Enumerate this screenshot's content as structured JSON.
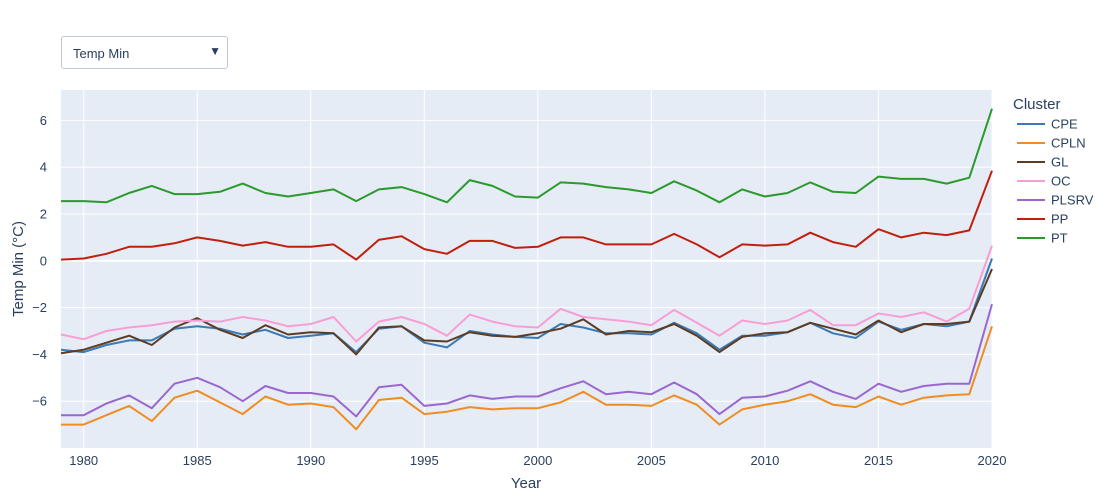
{
  "dropdown": {
    "selected": "Temp Min",
    "arrow": "▼"
  },
  "chart_data": {
    "type": "line",
    "xlabel": "Year",
    "ylabel": "Temp Min (°C)",
    "legend_title": "Cluster",
    "legend_position": "right",
    "grid": true,
    "xlim": [
      1979,
      2020
    ],
    "ylim": [
      -8.0,
      7.3
    ],
    "x_ticks": [
      1980,
      1985,
      1990,
      1995,
      2000,
      2005,
      2010,
      2015,
      2020
    ],
    "y_ticks": [
      6,
      4,
      2,
      0,
      -2,
      -4,
      -6
    ],
    "y_tick_labels": [
      "6",
      "4",
      "2",
      "0",
      "−2",
      "−4",
      "−6"
    ],
    "x": [
      1979,
      1980,
      1981,
      1982,
      1983,
      1984,
      1985,
      1986,
      1987,
      1988,
      1989,
      1990,
      1991,
      1992,
      1993,
      1994,
      1995,
      1996,
      1997,
      1998,
      1999,
      2000,
      2001,
      2002,
      2003,
      2004,
      2005,
      2006,
      2007,
      2008,
      2009,
      2010,
      2011,
      2012,
      2013,
      2014,
      2015,
      2016,
      2017,
      2018,
      2019,
      2020
    ],
    "series": [
      {
        "name": "CPE",
        "color": "#3c7ab5",
        "values": [
          -3.8,
          -3.9,
          -3.6,
          -3.4,
          -3.4,
          -2.9,
          -2.8,
          -2.9,
          -3.15,
          -2.95,
          -3.3,
          -3.2,
          -3.1,
          -3.9,
          -2.9,
          -2.8,
          -3.5,
          -3.7,
          -3.0,
          -3.15,
          -3.25,
          -3.3,
          -2.7,
          -2.85,
          -3.1,
          -3.1,
          -3.15,
          -2.65,
          -3.1,
          -3.8,
          -3.2,
          -3.2,
          -3.05,
          -2.65,
          -3.1,
          -3.3,
          -2.6,
          -2.95,
          -2.7,
          -2.8,
          -2.6,
          0.1
        ]
      },
      {
        "name": "CPLN",
        "color": "#ef8c22",
        "values": [
          -7.0,
          -7.0,
          -6.6,
          -6.2,
          -6.85,
          -5.85,
          -5.55,
          -6.05,
          -6.55,
          -5.8,
          -6.15,
          -6.1,
          -6.25,
          -7.2,
          -5.95,
          -5.85,
          -6.55,
          -6.45,
          -6.25,
          -6.35,
          -6.3,
          -6.3,
          -6.05,
          -5.6,
          -6.15,
          -6.15,
          -6.2,
          -5.75,
          -6.15,
          -7.0,
          -6.35,
          -6.15,
          -6.0,
          -5.7,
          -6.15,
          -6.25,
          -5.8,
          -6.15,
          -5.85,
          -5.75,
          -5.7,
          -2.8
        ]
      },
      {
        "name": "GL",
        "color": "#5c3c22",
        "values": [
          -3.95,
          -3.8,
          -3.5,
          -3.2,
          -3.6,
          -2.85,
          -2.45,
          -2.95,
          -3.3,
          -2.75,
          -3.15,
          -3.05,
          -3.1,
          -4.0,
          -2.85,
          -2.8,
          -3.4,
          -3.45,
          -3.05,
          -3.2,
          -3.25,
          -3.1,
          -2.9,
          -2.5,
          -3.15,
          -3.0,
          -3.05,
          -2.7,
          -3.2,
          -3.9,
          -3.25,
          -3.1,
          -3.05,
          -2.65,
          -2.9,
          -3.15,
          -2.55,
          -3.05,
          -2.7,
          -2.7,
          -2.6,
          -0.35
        ]
      },
      {
        "name": "OC",
        "color": "#f89ed4",
        "values": [
          -3.15,
          -3.35,
          -3.0,
          -2.85,
          -2.75,
          -2.6,
          -2.55,
          -2.6,
          -2.4,
          -2.55,
          -2.8,
          -2.7,
          -2.4,
          -3.45,
          -2.6,
          -2.4,
          -2.7,
          -3.2,
          -2.3,
          -2.6,
          -2.8,
          -2.85,
          -2.05,
          -2.4,
          -2.5,
          -2.6,
          -2.75,
          -2.1,
          -2.65,
          -3.2,
          -2.55,
          -2.7,
          -2.55,
          -2.1,
          -2.75,
          -2.75,
          -2.25,
          -2.4,
          -2.2,
          -2.6,
          -2.05,
          0.65
        ]
      },
      {
        "name": "PLSRV",
        "color": "#9a67cf",
        "values": [
          -6.6,
          -6.6,
          -6.1,
          -5.75,
          -6.3,
          -5.25,
          -5.0,
          -5.4,
          -6.0,
          -5.35,
          -5.65,
          -5.65,
          -5.8,
          -6.65,
          -5.4,
          -5.3,
          -6.2,
          -6.1,
          -5.75,
          -5.9,
          -5.8,
          -5.8,
          -5.45,
          -5.15,
          -5.7,
          -5.6,
          -5.7,
          -5.2,
          -5.7,
          -6.55,
          -5.85,
          -5.8,
          -5.55,
          -5.15,
          -5.6,
          -5.9,
          -5.25,
          -5.6,
          -5.35,
          -5.25,
          -5.25,
          -1.85
        ]
      },
      {
        "name": "PP",
        "color": "#c11f0e",
        "values": [
          0.05,
          0.1,
          0.3,
          0.6,
          0.6,
          0.75,
          1.0,
          0.85,
          0.65,
          0.8,
          0.6,
          0.6,
          0.7,
          0.05,
          0.9,
          1.05,
          0.5,
          0.3,
          0.85,
          0.85,
          0.55,
          0.6,
          1.0,
          1.0,
          0.7,
          0.7,
          0.7,
          1.15,
          0.7,
          0.15,
          0.7,
          0.65,
          0.7,
          1.2,
          0.8,
          0.6,
          1.35,
          1.0,
          1.2,
          1.1,
          1.3,
          3.85
        ]
      },
      {
        "name": "PT",
        "color": "#2a9a2c",
        "values": [
          2.55,
          2.55,
          2.5,
          2.9,
          3.2,
          2.85,
          2.85,
          2.95,
          3.3,
          2.9,
          2.75,
          2.9,
          3.05,
          2.55,
          3.05,
          3.15,
          2.85,
          2.5,
          3.45,
          3.2,
          2.75,
          2.7,
          3.35,
          3.3,
          3.15,
          3.05,
          2.9,
          3.4,
          3.0,
          2.5,
          3.05,
          2.75,
          2.9,
          3.35,
          2.95,
          2.9,
          3.6,
          3.5,
          3.5,
          3.3,
          3.55,
          6.5
        ]
      }
    ]
  }
}
